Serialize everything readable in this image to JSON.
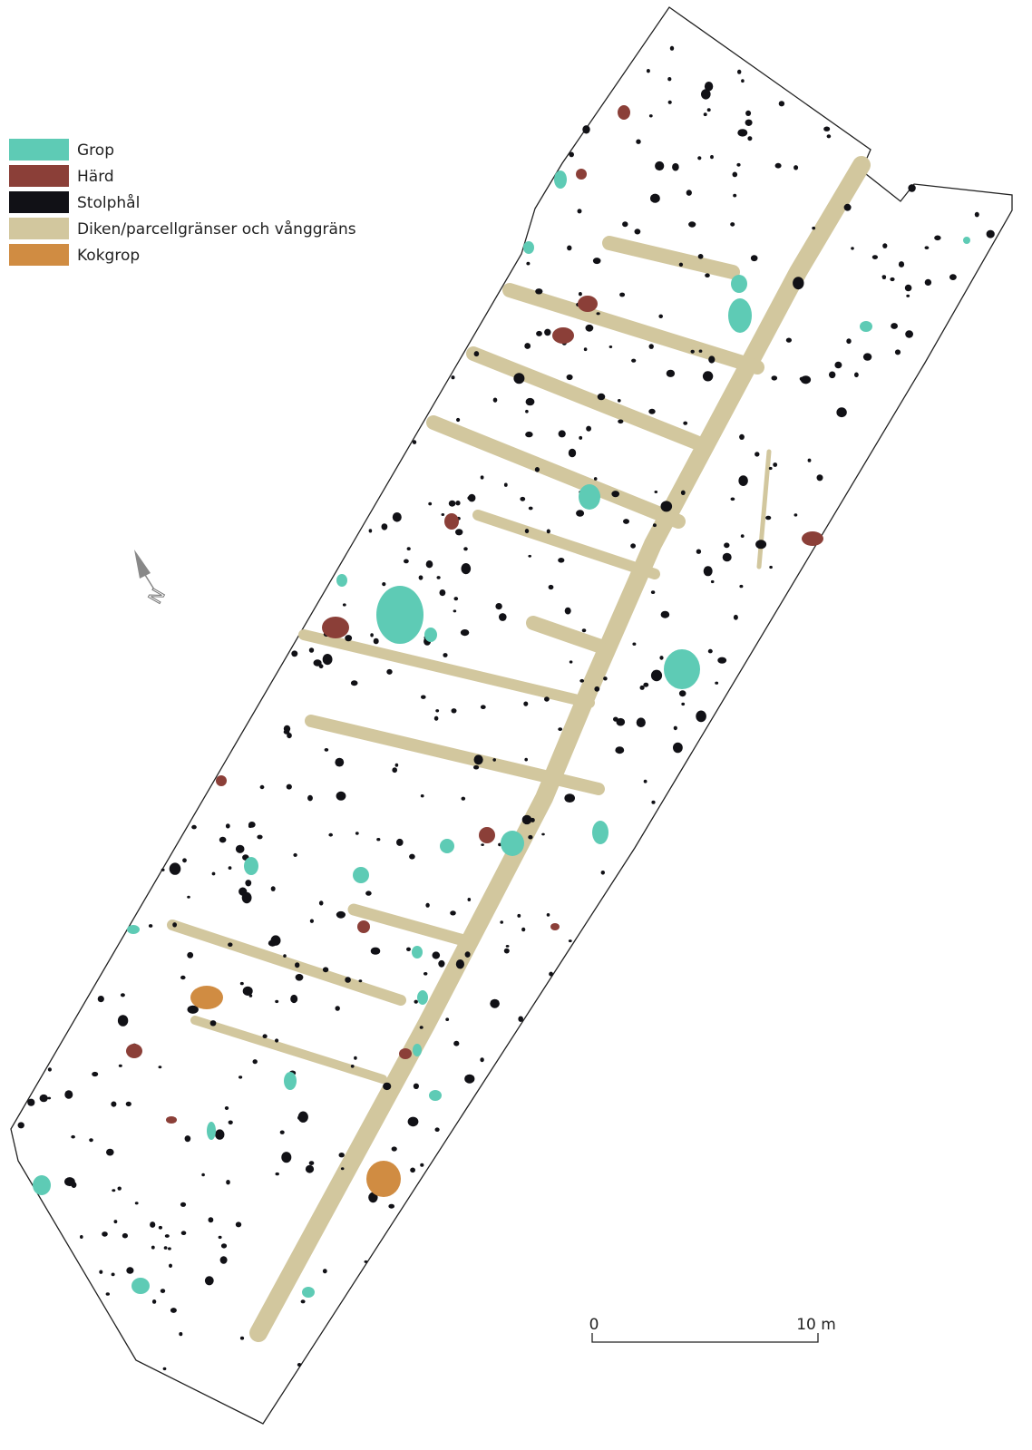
{
  "legend": [
    {
      "label": "Grop",
      "color": "#5ecbb5"
    },
    {
      "label": "Härd",
      "color": "#8b3f38"
    },
    {
      "label": "Stolphål",
      "color": "#111116"
    },
    {
      "label": "Diken/parcellgränser och vånggräns",
      "color": "#d2c79e"
    },
    {
      "label": "Kokgrop",
      "color": "#d08c42"
    }
  ],
  "north_label": "N",
  "scale": {
    "start": "0",
    "end": "10 m"
  }
}
